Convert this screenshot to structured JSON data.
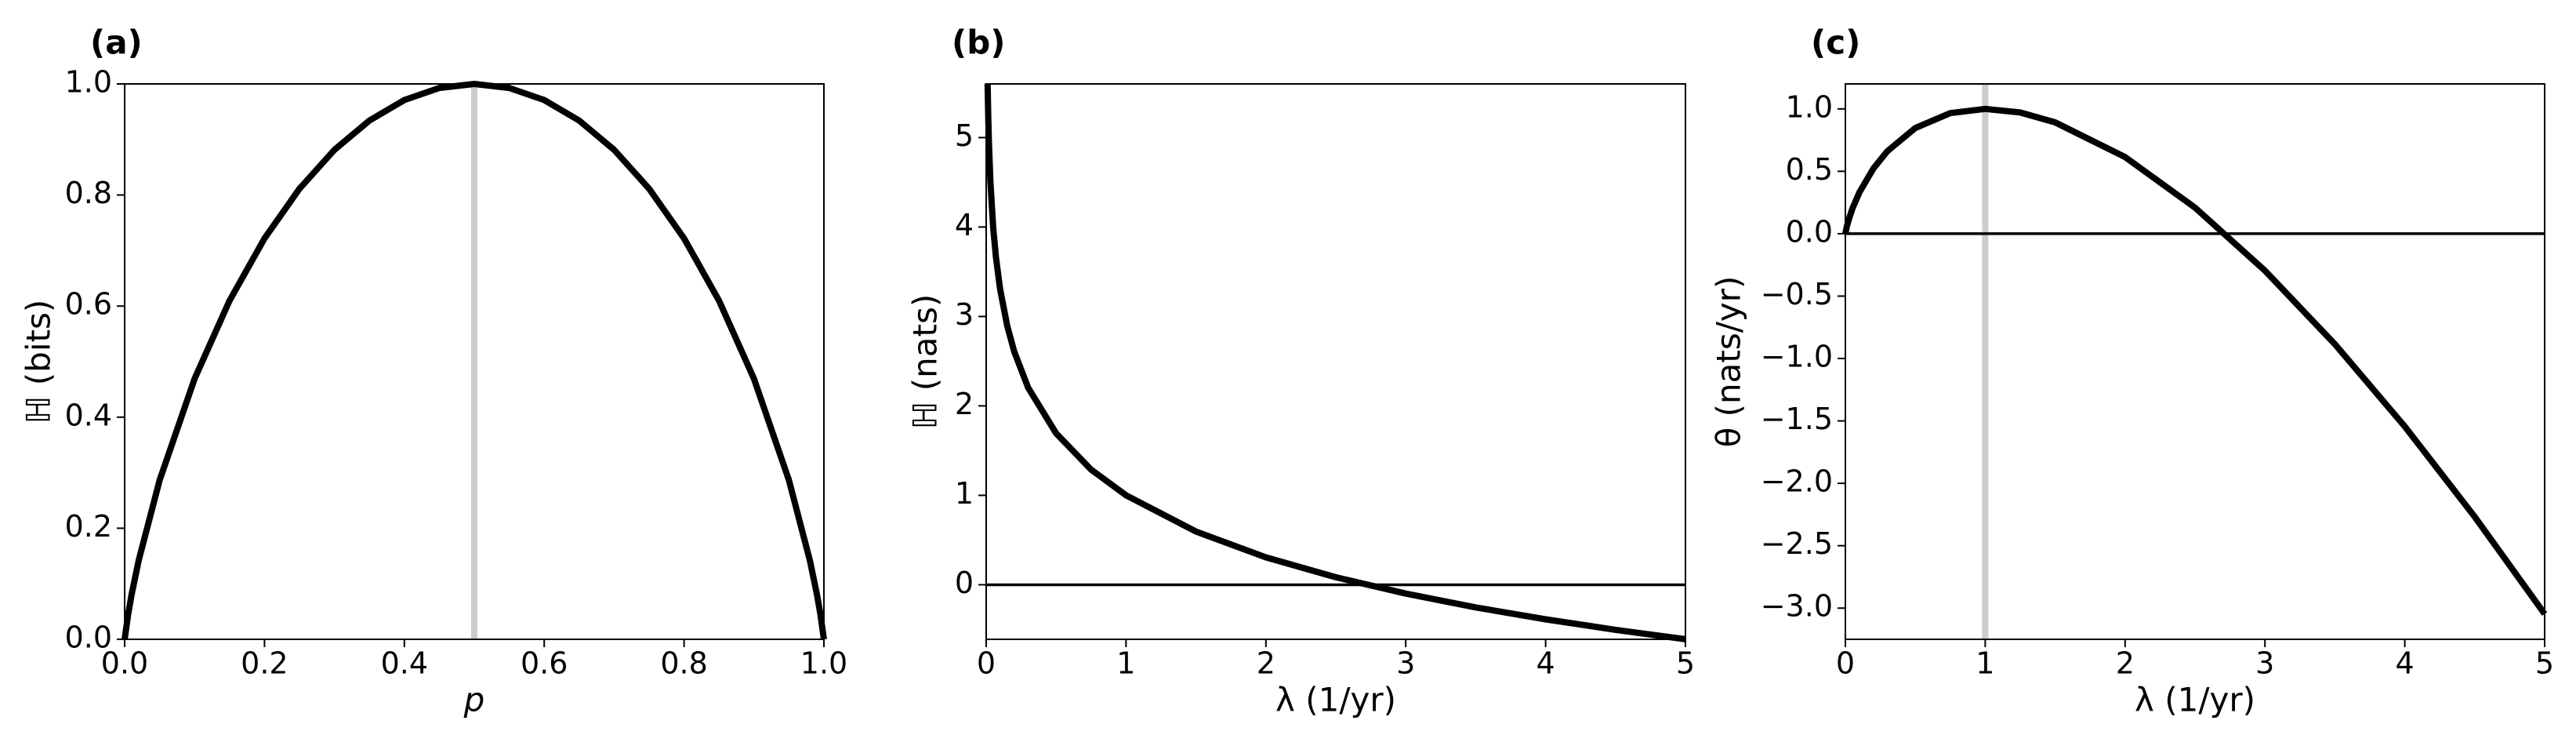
{
  "chart_data": [
    {
      "type": "line",
      "panel_label": "(a)",
      "xlabel": "p",
      "ylabel": "ℍ (bits)",
      "x": [
        0,
        0.005,
        0.01,
        0.02,
        0.05,
        0.1,
        0.15,
        0.2,
        0.25,
        0.3,
        0.35,
        0.4,
        0.45,
        0.5,
        0.55,
        0.6,
        0.65,
        0.7,
        0.75,
        0.8,
        0.85,
        0.9,
        0.95,
        0.98,
        0.99,
        0.995,
        1
      ],
      "series": [
        {
          "color": "#000000",
          "values": [
            0,
            0.0454,
            0.0808,
            0.1414,
            0.2864,
            0.469,
            0.6098,
            0.7219,
            0.8113,
            0.8813,
            0.9341,
            0.971,
            0.9928,
            1,
            0.9928,
            0.971,
            0.9341,
            0.8813,
            0.8113,
            0.7219,
            0.6098,
            0.469,
            0.2864,
            0.1414,
            0.0808,
            0.0454,
            0
          ]
        }
      ],
      "vline": 0.5,
      "xlim": [
        0,
        1
      ],
      "ylim": [
        0,
        1
      ],
      "xticks": [
        {
          "value": 0,
          "label": "0.0"
        },
        0.2,
        0.4,
        0.6,
        0.8,
        {
          "value": 1,
          "label": "1.0"
        }
      ],
      "yticks": [
        {
          "value": 0,
          "label": "0.0"
        },
        0.2,
        0.4,
        0.6,
        0.8,
        {
          "value": 1,
          "label": "1.0"
        }
      ]
    },
    {
      "type": "line",
      "panel_label": "(b)",
      "xlabel": "λ (1/yr)",
      "ylabel": "ℍ (nats)",
      "x": [
        0.01,
        0.015,
        0.02,
        0.03,
        0.05,
        0.07,
        0.1,
        0.15,
        0.2,
        0.3,
        0.5,
        0.75,
        1,
        1.5,
        2,
        2.5,
        3,
        3.5,
        4,
        4.5,
        5
      ],
      "series": [
        {
          "color": "#000000",
          "values": [
            5.605,
            5.2,
            4.912,
            4.507,
            3.996,
            3.659,
            3.303,
            2.897,
            2.609,
            2.204,
            1.693,
            1.288,
            1,
            0.595,
            0.307,
            0.084,
            -0.099,
            -0.253,
            -0.386,
            -0.504,
            -0.609
          ]
        }
      ],
      "hline": 0,
      "xlim": [
        0,
        5
      ],
      "ylim": [
        -0.61,
        5.6
      ],
      "xticks": [
        0,
        1,
        2,
        3,
        4,
        5
      ],
      "yticks": [
        0,
        1,
        2,
        3,
        4,
        5
      ]
    },
    {
      "type": "line",
      "panel_label": "(c)",
      "xlabel": "λ (1/yr)",
      "ylabel": "θ (nats/yr)",
      "x": [
        0,
        0.01,
        0.02,
        0.05,
        0.1,
        0.2,
        0.3,
        0.5,
        0.75,
        1,
        1.25,
        1.5,
        2,
        2.5,
        3,
        3.5,
        4,
        4.5,
        5
      ],
      "series": [
        {
          "color": "#000000",
          "values": [
            0,
            0.056,
            0.098,
            0.2,
            0.33,
            0.522,
            0.661,
            0.847,
            0.966,
            1,
            0.971,
            0.892,
            0.614,
            0.209,
            -0.296,
            -0.885,
            -1.545,
            -2.268,
            -3.047
          ]
        }
      ],
      "vline": 1,
      "hline": 0,
      "xlim": [
        0,
        5
      ],
      "ylim": [
        -3.25,
        1.2
      ],
      "xticks": [
        0,
        1,
        2,
        3,
        4,
        5
      ],
      "yticks": [
        {
          "value": -3,
          "label": "−3.0"
        },
        {
          "value": -2.5,
          "label": "−2.5"
        },
        {
          "value": -2,
          "label": "−2.0"
        },
        {
          "value": -1.5,
          "label": "−1.5"
        },
        {
          "value": -1,
          "label": "−1.0"
        },
        {
          "value": -0.5,
          "label": "−0.5"
        },
        {
          "value": 0,
          "label": "0.0"
        },
        {
          "value": 0.5,
          "label": "0.5"
        },
        {
          "value": 1,
          "label": "1.0"
        }
      ]
    }
  ]
}
